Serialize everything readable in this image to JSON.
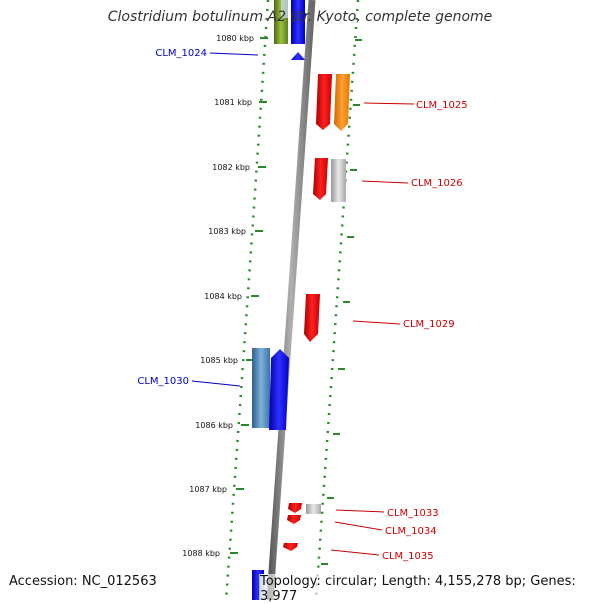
{
  "title": "Clostridium botulinum A2 str. Kyoto, complete genome",
  "accession": "Accession: NC_012563",
  "info": "Topology: circular; Length: 4,155,278 bp; Genes: 3,977",
  "ticks": [
    "1080 kbp",
    "1081 kbp",
    "1082 kbp",
    "1083 kbp",
    "1084 kbp",
    "1085 kbp",
    "1086 kbp",
    "1087 kbp",
    "1088 kbp"
  ],
  "colors": {
    "backbone": "#808080",
    "tick": "#2a8a2a",
    "label_blue": "#0000cc",
    "label_red": "#cc0000",
    "gene_red": "#ee0000",
    "gene_orange": "#ff8c00",
    "gene_grey": "#b0b0b0",
    "gene_blue": "#0000ee",
    "gene_steelblue": "#4682b4",
    "gene_olive": "#6b8e23"
  },
  "gene_labels": [
    {
      "id": "l1024",
      "text": "CLM_1024",
      "color": "blue"
    },
    {
      "id": "l1025",
      "text": "CLM_1025",
      "color": "red"
    },
    {
      "id": "l1026",
      "text": "CLM_1026",
      "color": "red"
    },
    {
      "id": "l1029",
      "text": "CLM_1029",
      "color": "red"
    },
    {
      "id": "l1030",
      "text": "CLM_1030",
      "color": "blue"
    },
    {
      "id": "l1033",
      "text": "CLM_1033",
      "color": "red"
    },
    {
      "id": "l1034",
      "text": "CLM_1034",
      "color": "red"
    },
    {
      "id": "l1035",
      "text": "CLM_1035",
      "color": "red"
    }
  ]
}
